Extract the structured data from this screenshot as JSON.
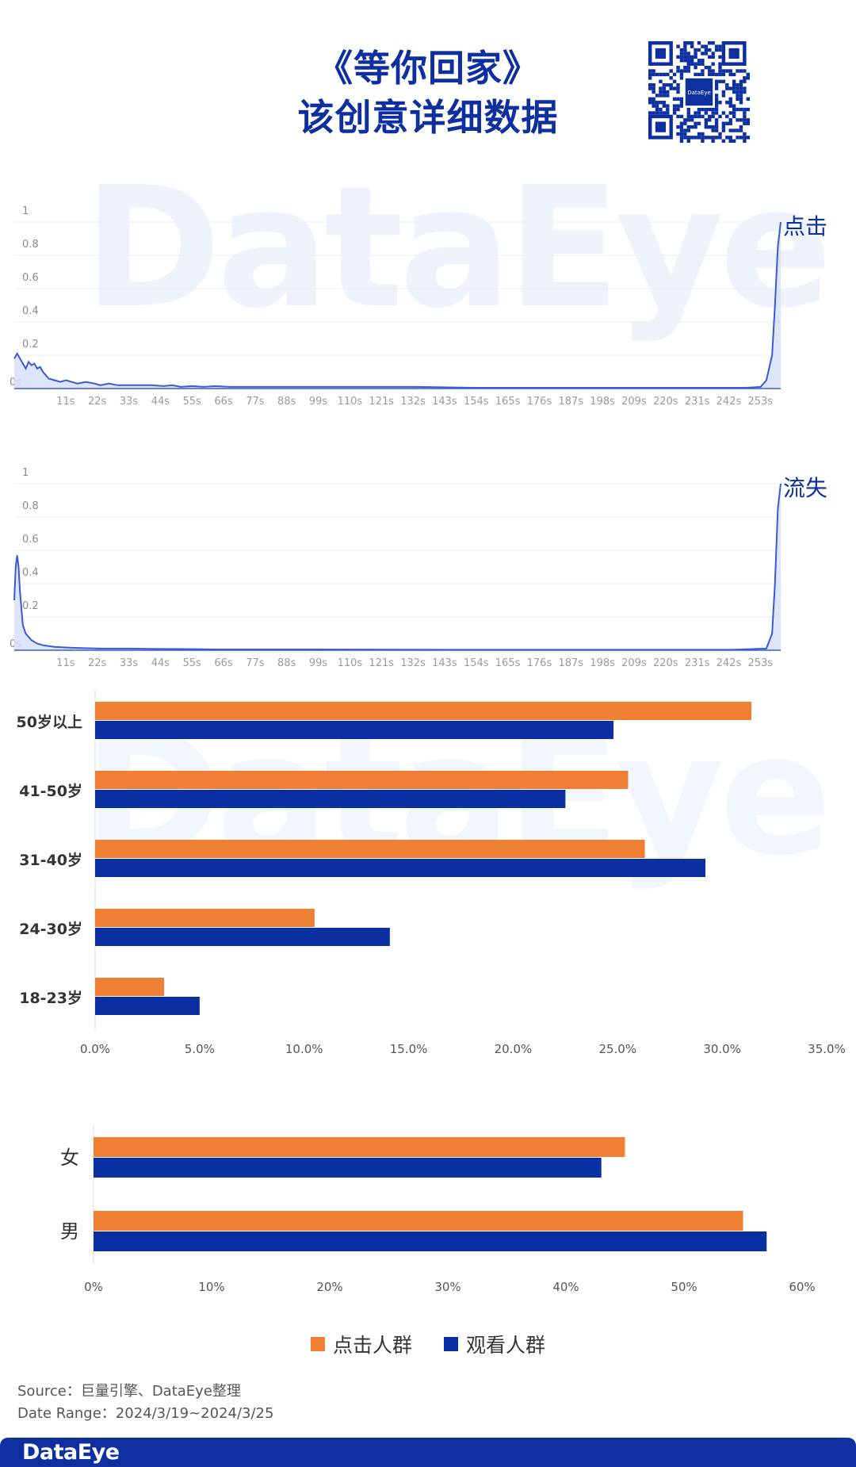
{
  "header": {
    "title_line1": "《等你回家》",
    "title_line2": "该创意详细数据",
    "qr_logo_text": "DataEye"
  },
  "watermark": "DataEye",
  "colors": {
    "brand_blue": "#0d2fa0",
    "line_blue": "#3a5ad8",
    "area_fill": "#d6ddf7",
    "orange": "#ef7f32",
    "navy": "#0a2fa0"
  },
  "chart_data": [
    {
      "type": "area",
      "label": "点击",
      "yticks": [
        "1",
        "0.8",
        "0.6",
        "0.4",
        "0.2",
        "0s"
      ],
      "ylim": [
        0,
        1
      ],
      "xtick_labels": [
        "11s",
        "22s",
        "33s",
        "44s",
        "55s",
        "66s",
        "77s",
        "88s",
        "99s",
        "110s",
        "121s",
        "132s",
        "143s",
        "154s",
        "165s",
        "176s",
        "187s",
        "198s",
        "209s",
        "220s",
        "231s",
        "242s",
        "253s"
      ],
      "x": [
        0,
        1,
        2,
        3,
        4,
        5,
        6,
        7,
        8,
        9,
        10,
        11,
        12,
        14,
        16,
        18,
        20,
        22,
        25,
        28,
        30,
        33,
        36,
        40,
        44,
        48,
        52,
        55,
        58,
        62,
        66,
        70,
        75,
        80,
        88,
        100,
        120,
        140,
        160,
        180,
        200,
        220,
        240,
        255,
        260,
        262,
        264,
        265,
        266,
        267
      ],
      "values": [
        0.18,
        0.21,
        0.18,
        0.15,
        0.12,
        0.16,
        0.14,
        0.15,
        0.12,
        0.13,
        0.1,
        0.08,
        0.06,
        0.05,
        0.04,
        0.05,
        0.04,
        0.03,
        0.04,
        0.03,
        0.02,
        0.03,
        0.02,
        0.02,
        0.02,
        0.02,
        0.015,
        0.02,
        0.01,
        0.015,
        0.01,
        0.015,
        0.01,
        0.01,
        0.01,
        0.01,
        0.01,
        0.01,
        0.005,
        0.005,
        0.005,
        0.005,
        0.005,
        0.005,
        0.01,
        0.05,
        0.2,
        0.5,
        0.85,
        1.0
      ]
    },
    {
      "type": "area",
      "label": "流失",
      "yticks": [
        "1",
        "0.8",
        "0.6",
        "0.4",
        "0.2",
        "0s"
      ],
      "ylim": [
        0,
        1
      ],
      "xtick_labels": [
        "11s",
        "22s",
        "33s",
        "44s",
        "55s",
        "66s",
        "77s",
        "88s",
        "99s",
        "110s",
        "121s",
        "132s",
        "143s",
        "154s",
        "165s",
        "176s",
        "187s",
        "198s",
        "209s",
        "220s",
        "231s",
        "242s",
        "253s"
      ],
      "x": [
        0,
        0.5,
        1,
        1.5,
        2,
        3,
        4,
        5,
        6,
        8,
        10,
        14,
        20,
        30,
        40,
        50,
        60,
        70,
        80,
        100,
        150,
        200,
        250,
        262,
        264,
        265,
        266,
        267
      ],
      "values": [
        0.3,
        0.5,
        0.57,
        0.5,
        0.35,
        0.15,
        0.1,
        0.08,
        0.06,
        0.04,
        0.03,
        0.02,
        0.015,
        0.01,
        0.01,
        0.008,
        0.007,
        0.005,
        0.005,
        0.005,
        0.003,
        0.003,
        0.003,
        0.01,
        0.1,
        0.4,
        0.85,
        1.0
      ]
    },
    {
      "type": "bar",
      "orientation": "horizontal",
      "categories": [
        "50岁以上",
        "41-50岁",
        "31-40岁",
        "24-30岁",
        "18-23岁"
      ],
      "series": [
        {
          "name": "点击人群",
          "values": [
            31.4,
            25.5,
            26.3,
            10.5,
            3.3
          ]
        },
        {
          "name": "观看人群",
          "values": [
            24.8,
            22.5,
            29.2,
            14.1,
            5.0
          ]
        }
      ],
      "xticks": [
        "0.0%",
        "5.0%",
        "10.0%",
        "15.0%",
        "20.0%",
        "25.0%",
        "30.0%",
        "35.0%"
      ],
      "xlim": [
        0,
        35
      ]
    },
    {
      "type": "bar",
      "orientation": "horizontal",
      "categories": [
        "女",
        "男"
      ],
      "series": [
        {
          "name": "点击人群",
          "values": [
            45.0,
            55.0
          ]
        },
        {
          "name": "观看人群",
          "values": [
            43.0,
            57.0
          ]
        }
      ],
      "xticks": [
        "0%",
        "10%",
        "20%",
        "30%",
        "40%",
        "50%",
        "60%"
      ],
      "xlim": [
        0,
        60
      ]
    }
  ],
  "legend": [
    {
      "label": "点击人群"
    },
    {
      "label": "观看人群"
    }
  ],
  "source": {
    "line1": "Source：巨量引擎、DataEye整理",
    "line2": "Date Range：2024/3/19~2024/3/25"
  },
  "footer": {
    "logo": "DataEye"
  }
}
